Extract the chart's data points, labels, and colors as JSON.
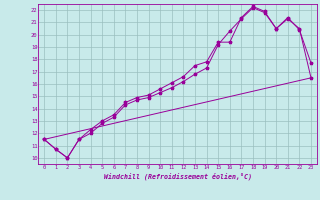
{
  "xlabel": "Windchill (Refroidissement éolien,°C)",
  "bg_color": "#c8eaea",
  "grid_color": "#9bbfbf",
  "line_color": "#990099",
  "xlim": [
    -0.5,
    23.5
  ],
  "ylim": [
    9.5,
    22.5
  ],
  "xticks": [
    0,
    1,
    2,
    3,
    4,
    5,
    6,
    7,
    8,
    9,
    10,
    11,
    12,
    13,
    14,
    15,
    16,
    17,
    18,
    19,
    20,
    21,
    22,
    23
  ],
  "yticks": [
    10,
    11,
    12,
    13,
    14,
    15,
    16,
    17,
    18,
    19,
    20,
    21,
    22
  ],
  "series_line_x": [
    0,
    23
  ],
  "series_line_y": [
    11.5,
    16.5
  ],
  "series1_x": [
    0,
    1,
    2,
    3,
    4,
    5,
    6,
    7,
    8,
    9,
    10,
    11,
    12,
    13,
    14,
    15,
    16,
    17,
    18,
    19,
    20,
    21,
    22,
    23
  ],
  "series1_y": [
    11.5,
    10.7,
    10.0,
    11.5,
    12.0,
    12.8,
    13.3,
    14.3,
    14.7,
    14.9,
    15.3,
    15.7,
    16.2,
    16.8,
    17.3,
    19.2,
    20.3,
    21.3,
    22.2,
    21.8,
    20.5,
    21.3,
    20.5,
    16.5
  ],
  "series2_x": [
    0,
    1,
    2,
    3,
    4,
    5,
    6,
    7,
    8,
    9,
    10,
    11,
    12,
    13,
    14,
    15,
    16,
    17,
    18,
    19,
    20,
    21,
    22,
    23
  ],
  "series2_y": [
    11.5,
    10.7,
    10.0,
    11.5,
    12.3,
    13.0,
    13.5,
    14.5,
    14.9,
    15.1,
    15.6,
    16.1,
    16.6,
    17.5,
    17.8,
    19.4,
    19.4,
    21.4,
    22.3,
    21.9,
    20.5,
    21.4,
    20.4,
    17.7
  ]
}
